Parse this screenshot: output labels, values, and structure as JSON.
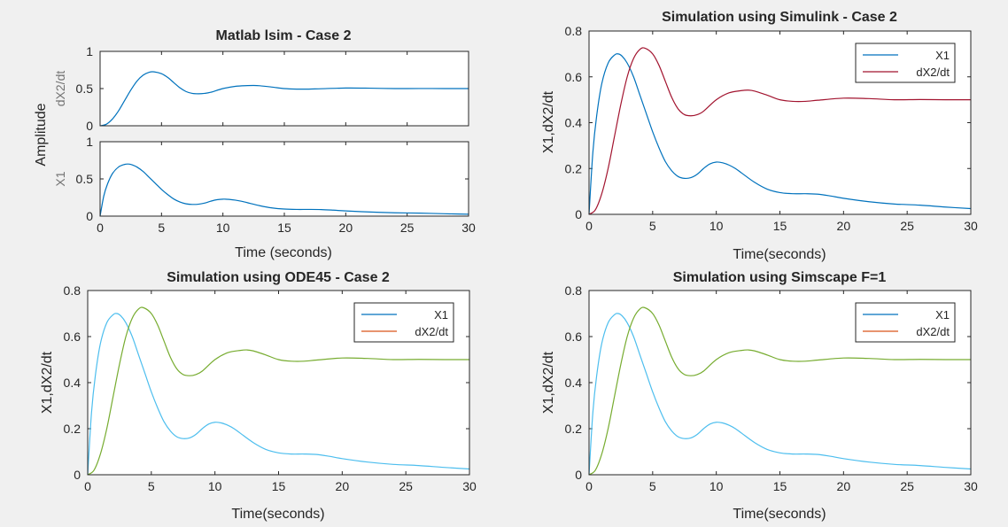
{
  "figure": {
    "background": "#f0f0f0"
  },
  "chart_data": [
    {
      "id": "lsim",
      "type": "line",
      "title": "Matlab lsim  - Case 2",
      "xlabel": "Time (seconds)",
      "ylabel": "Amplitude",
      "legend": null,
      "subplots": [
        {
          "ylabel": "dX2/dt",
          "xlim": [
            0,
            30
          ],
          "ylim": [
            0,
            1
          ],
          "xticks": [
            0,
            5,
            10,
            15,
            20,
            25,
            30
          ],
          "yticks": [
            0,
            0.5,
            1
          ],
          "show_xticklabels": false,
          "series": [
            {
              "color": "#0072bd",
              "x": [
                0,
                0.5,
                1,
                1.5,
                2,
                2.5,
                3,
                3.5,
                4,
                4.4,
                5,
                5.5,
                6,
                6.5,
                7,
                7.5,
                8,
                8.5,
                9,
                10,
                11,
                12,
                12.5,
                13,
                14,
                15,
                16,
                17,
                18,
                20,
                22,
                24,
                26,
                28,
                30
              ],
              "y": [
                0,
                0.02,
                0.09,
                0.2,
                0.34,
                0.48,
                0.6,
                0.68,
                0.72,
                0.725,
                0.7,
                0.65,
                0.58,
                0.51,
                0.46,
                0.435,
                0.43,
                0.435,
                0.45,
                0.5,
                0.53,
                0.54,
                0.542,
                0.538,
                0.52,
                0.5,
                0.493,
                0.493,
                0.498,
                0.507,
                0.505,
                0.5,
                0.501,
                0.5,
                0.5
              ]
            }
          ]
        },
        {
          "ylabel": "X1",
          "xlim": [
            0,
            30
          ],
          "ylim": [
            0,
            1
          ],
          "xticks": [
            0,
            5,
            10,
            15,
            20,
            25,
            30
          ],
          "yticks": [
            0,
            0.5,
            1
          ],
          "show_xticklabels": true,
          "series": [
            {
              "color": "#0072bd",
              "x": [
                0,
                0.3,
                0.6,
                1,
                1.5,
                2,
                2.3,
                2.6,
                3,
                3.5,
                4,
                4.5,
                5,
                5.5,
                6,
                6.5,
                7,
                7.5,
                8,
                8.5,
                9,
                9.5,
                10,
                10.5,
                11,
                11.5,
                12,
                13,
                14,
                15,
                16,
                17,
                18,
                19,
                20,
                22,
                24,
                26,
                28,
                30
              ],
              "y": [
                0,
                0.27,
                0.43,
                0.57,
                0.66,
                0.695,
                0.7,
                0.69,
                0.66,
                0.6,
                0.52,
                0.44,
                0.36,
                0.29,
                0.23,
                0.19,
                0.165,
                0.157,
                0.16,
                0.175,
                0.2,
                0.22,
                0.228,
                0.225,
                0.215,
                0.2,
                0.18,
                0.14,
                0.11,
                0.095,
                0.09,
                0.09,
                0.088,
                0.08,
                0.07,
                0.055,
                0.045,
                0.04,
                0.032,
                0.025
              ]
            }
          ]
        }
      ]
    },
    {
      "id": "simulink",
      "type": "line",
      "title": "Simulation using Simulink - Case 2",
      "xlabel": "Time(seconds)",
      "ylabel": "X1,dX2/dt",
      "xlim": [
        0,
        30
      ],
      "ylim": [
        0,
        0.8
      ],
      "xticks": [
        0,
        5,
        10,
        15,
        20,
        25,
        30
      ],
      "yticks": [
        0,
        0.2,
        0.4,
        0.6,
        0.8
      ],
      "legend": "top-right",
      "series": [
        {
          "name": "X1",
          "color": "#0072bd",
          "x": [
            0,
            0.3,
            0.6,
            1,
            1.5,
            2,
            2.3,
            2.6,
            3,
            3.5,
            4,
            4.5,
            5,
            5.5,
            6,
            6.5,
            7,
            7.5,
            8,
            8.5,
            9,
            9.5,
            10,
            10.5,
            11,
            11.5,
            12,
            13,
            14,
            15,
            16,
            17,
            18,
            19,
            20,
            22,
            24,
            26,
            28,
            30
          ],
          "y": [
            0,
            0.27,
            0.43,
            0.57,
            0.66,
            0.695,
            0.7,
            0.69,
            0.66,
            0.6,
            0.52,
            0.44,
            0.36,
            0.29,
            0.23,
            0.19,
            0.165,
            0.157,
            0.16,
            0.175,
            0.2,
            0.22,
            0.228,
            0.225,
            0.215,
            0.2,
            0.18,
            0.14,
            0.11,
            0.095,
            0.09,
            0.09,
            0.088,
            0.08,
            0.07,
            0.055,
            0.045,
            0.04,
            0.032,
            0.025
          ]
        },
        {
          "name": "dX2/dt",
          "color": "#a2142f",
          "x": [
            0,
            0.5,
            1,
            1.5,
            2,
            2.5,
            3,
            3.5,
            4,
            4.4,
            5,
            5.5,
            6,
            6.5,
            7,
            7.5,
            8,
            8.5,
            9,
            10,
            11,
            12,
            12.5,
            13,
            14,
            15,
            16,
            17,
            18,
            20,
            22,
            24,
            26,
            28,
            30
          ],
          "y": [
            0,
            0.02,
            0.09,
            0.2,
            0.34,
            0.48,
            0.6,
            0.68,
            0.72,
            0.725,
            0.7,
            0.65,
            0.58,
            0.51,
            0.46,
            0.435,
            0.43,
            0.435,
            0.45,
            0.5,
            0.53,
            0.54,
            0.542,
            0.538,
            0.52,
            0.5,
            0.493,
            0.493,
            0.498,
            0.507,
            0.505,
            0.5,
            0.501,
            0.5,
            0.5
          ]
        }
      ]
    },
    {
      "id": "ode45",
      "type": "line",
      "title": "Simulation using ODE45 - Case 2",
      "xlabel": "Time(seconds)",
      "ylabel": "X1,dX2/dt",
      "xlim": [
        0,
        30
      ],
      "ylim": [
        0,
        0.8
      ],
      "xticks": [
        0,
        5,
        10,
        15,
        20,
        25,
        30
      ],
      "yticks": [
        0,
        0.2,
        0.4,
        0.6,
        0.8
      ],
      "legend": "top-right",
      "legend_colors": [
        "#0072bd",
        "#d95319"
      ],
      "series": [
        {
          "name": "X1",
          "color": "#4dbeee",
          "x": [
            0,
            0.3,
            0.6,
            1,
            1.5,
            2,
            2.3,
            2.6,
            3,
            3.5,
            4,
            4.5,
            5,
            5.5,
            6,
            6.5,
            7,
            7.5,
            8,
            8.5,
            9,
            9.5,
            10,
            10.5,
            11,
            11.5,
            12,
            13,
            14,
            15,
            16,
            17,
            18,
            19,
            20,
            22,
            24,
            26,
            28,
            30
          ],
          "y": [
            0,
            0.27,
            0.43,
            0.57,
            0.66,
            0.695,
            0.7,
            0.69,
            0.66,
            0.6,
            0.52,
            0.44,
            0.36,
            0.29,
            0.23,
            0.19,
            0.165,
            0.157,
            0.16,
            0.175,
            0.2,
            0.22,
            0.228,
            0.225,
            0.215,
            0.2,
            0.18,
            0.14,
            0.11,
            0.095,
            0.09,
            0.09,
            0.088,
            0.08,
            0.07,
            0.055,
            0.045,
            0.04,
            0.032,
            0.025
          ]
        },
        {
          "name": "dX2/dt",
          "color": "#77ac30",
          "x": [
            0,
            0.5,
            1,
            1.5,
            2,
            2.5,
            3,
            3.5,
            4,
            4.4,
            5,
            5.5,
            6,
            6.5,
            7,
            7.5,
            8,
            8.5,
            9,
            10,
            11,
            12,
            12.5,
            13,
            14,
            15,
            16,
            17,
            18,
            20,
            22,
            24,
            26,
            28,
            30
          ],
          "y": [
            0,
            0.02,
            0.09,
            0.2,
            0.34,
            0.48,
            0.6,
            0.68,
            0.72,
            0.725,
            0.7,
            0.65,
            0.58,
            0.51,
            0.46,
            0.435,
            0.43,
            0.435,
            0.45,
            0.5,
            0.53,
            0.54,
            0.542,
            0.538,
            0.52,
            0.5,
            0.493,
            0.493,
            0.498,
            0.507,
            0.505,
            0.5,
            0.501,
            0.5,
            0.5
          ]
        }
      ]
    },
    {
      "id": "simscape",
      "type": "line",
      "title": "Simulation using Simscape F=1",
      "xlabel": "Time(seconds)",
      "ylabel": "X1,dX2/dt",
      "xlim": [
        0,
        30
      ],
      "ylim": [
        0,
        0.8
      ],
      "xticks": [
        0,
        5,
        10,
        15,
        20,
        25,
        30
      ],
      "yticks": [
        0,
        0.2,
        0.4,
        0.6,
        0.8
      ],
      "legend": "top-right",
      "legend_colors": [
        "#0072bd",
        "#d95319"
      ],
      "series": [
        {
          "name": "X1",
          "color": "#4dbeee",
          "x": [
            0,
            0.3,
            0.6,
            1,
            1.5,
            2,
            2.3,
            2.6,
            3,
            3.5,
            4,
            4.5,
            5,
            5.5,
            6,
            6.5,
            7,
            7.5,
            8,
            8.5,
            9,
            9.5,
            10,
            10.5,
            11,
            11.5,
            12,
            13,
            14,
            15,
            16,
            17,
            18,
            19,
            20,
            22,
            24,
            26,
            28,
            30
          ],
          "y": [
            0,
            0.27,
            0.43,
            0.57,
            0.66,
            0.695,
            0.7,
            0.69,
            0.66,
            0.6,
            0.52,
            0.44,
            0.36,
            0.29,
            0.23,
            0.19,
            0.165,
            0.157,
            0.16,
            0.175,
            0.2,
            0.22,
            0.228,
            0.225,
            0.215,
            0.2,
            0.18,
            0.14,
            0.11,
            0.095,
            0.09,
            0.09,
            0.088,
            0.08,
            0.07,
            0.055,
            0.045,
            0.04,
            0.032,
            0.025
          ]
        },
        {
          "name": "dX2/dt",
          "color": "#77ac30",
          "x": [
            0,
            0.5,
            1,
            1.5,
            2,
            2.5,
            3,
            3.5,
            4,
            4.4,
            5,
            5.5,
            6,
            6.5,
            7,
            7.5,
            8,
            8.5,
            9,
            10,
            11,
            12,
            12.5,
            13,
            14,
            15,
            16,
            17,
            18,
            20,
            22,
            24,
            26,
            28,
            30
          ],
          "y": [
            0,
            0.02,
            0.09,
            0.2,
            0.34,
            0.48,
            0.6,
            0.68,
            0.72,
            0.725,
            0.7,
            0.65,
            0.58,
            0.51,
            0.46,
            0.435,
            0.43,
            0.435,
            0.45,
            0.5,
            0.53,
            0.54,
            0.542,
            0.538,
            0.52,
            0.5,
            0.493,
            0.493,
            0.498,
            0.507,
            0.505,
            0.5,
            0.501,
            0.5,
            0.5
          ]
        }
      ]
    }
  ]
}
